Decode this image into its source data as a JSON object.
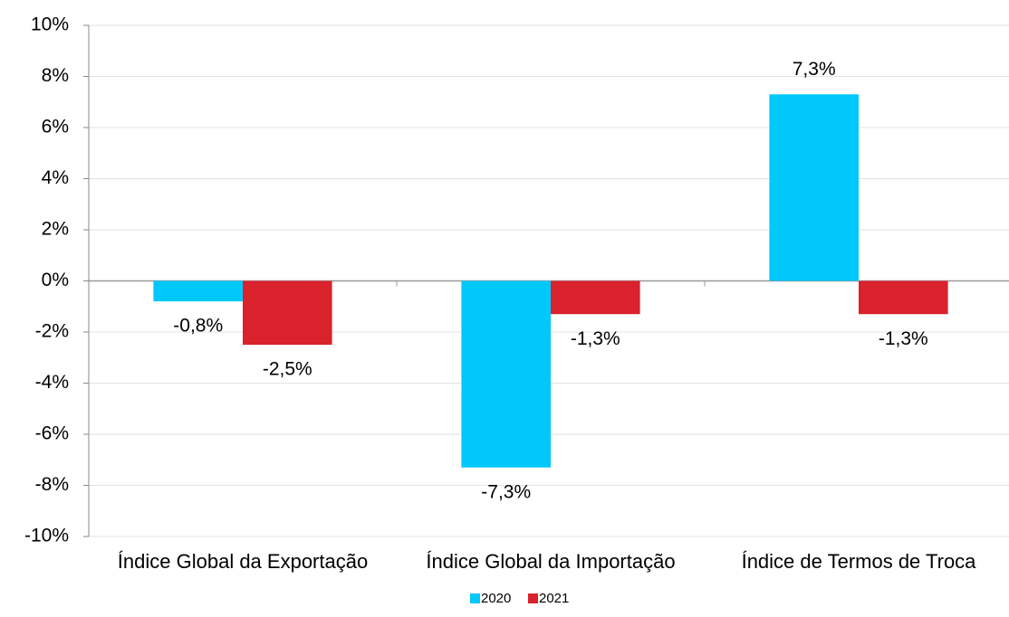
{
  "chart_data": {
    "type": "bar",
    "categories": [
      "Índice Global da Exportação",
      "Índice Global da Importação",
      "Índice de Termos de Troca"
    ],
    "series": [
      {
        "name": "2020",
        "color": "#00c8fa",
        "values": [
          -0.8,
          -7.3,
          7.3
        ],
        "value_labels": [
          "-0,8%",
          "-7,3%",
          "7,3%"
        ]
      },
      {
        "name": "2021",
        "color": "#d9222c",
        "values": [
          -2.5,
          -1.3,
          -1.3
        ],
        "value_labels": [
          "-2,5%",
          "-1,3%",
          "-1,3%"
        ]
      }
    ],
    "ylim": [
      -10,
      10
    ],
    "yticks": [
      {
        "value": -10,
        "label": "-10%"
      },
      {
        "value": -8,
        "label": "-8%"
      },
      {
        "value": -6,
        "label": "-6%"
      },
      {
        "value": -4,
        "label": "-4%"
      },
      {
        "value": -2,
        "label": "-2%"
      },
      {
        "value": 0,
        "label": "0%"
      },
      {
        "value": 2,
        "label": "2%"
      },
      {
        "value": 4,
        "label": "4%"
      },
      {
        "value": 6,
        "label": "6%"
      },
      {
        "value": 8,
        "label": "8%"
      },
      {
        "value": 10,
        "label": "10%"
      }
    ],
    "grid": true,
    "legend": "bottom"
  }
}
